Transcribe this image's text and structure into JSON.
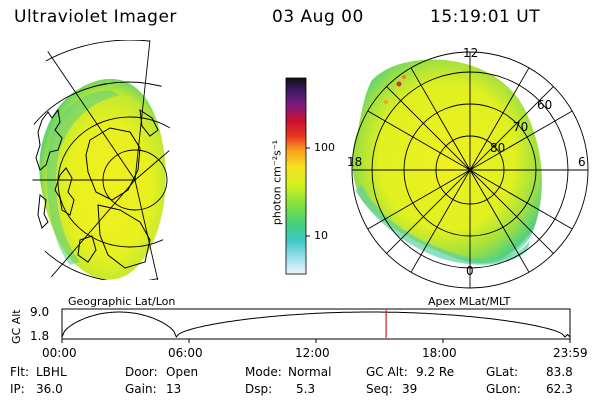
{
  "header": {
    "instrument": "Ultraviolet Imager",
    "date": "03 Aug 00",
    "time": "15:19:01 UT"
  },
  "geo_panel": {
    "label": "Geographic Lat/Lon"
  },
  "apex_panel": {
    "label": "Apex MLat/MLT",
    "mlt_labels": {
      "top": "12",
      "left": "18",
      "right": "6",
      "bottom": "0"
    },
    "lat_labels": [
      "60",
      "70",
      "80"
    ]
  },
  "colorbar": {
    "unit_label": "photon cm⁻²s⁻¹",
    "ticks": [
      "100",
      "10"
    ],
    "colors": [
      "#111111",
      "#3a1a60",
      "#7a1a80",
      "#cc1030",
      "#e83a20",
      "#f8a020",
      "#f8e020",
      "#d0f020",
      "#80e040",
      "#40d080",
      "#40c8c8",
      "#a0e0f0",
      "#e8f4f8"
    ]
  },
  "timeline": {
    "ylabel": "GC Alt",
    "y_top": "9.0",
    "y_bottom": "1.8",
    "x_ticks": [
      "00:00",
      "06:00",
      "12:00",
      "18:00",
      "23:59"
    ],
    "current_time_fraction": 0.638
  },
  "info": {
    "row1": [
      {
        "label": "Flt:",
        "value": "LBHL"
      },
      {
        "label": "Door:",
        "value": "Open"
      },
      {
        "label": "Mode:",
        "value": "Normal"
      },
      {
        "label": "GC Alt:",
        "value": "9.2 Re"
      },
      {
        "label": "GLat:",
        "value": "83.8"
      }
    ],
    "row2": [
      {
        "label": "IP:",
        "value": "36.0"
      },
      {
        "label": "Gain:",
        "value": "13"
      },
      {
        "label": "Dsp:",
        "value": "5.3"
      },
      {
        "label": "Seq:",
        "value": "39"
      },
      {
        "label": "GLon:",
        "value": "62.3"
      }
    ]
  }
}
